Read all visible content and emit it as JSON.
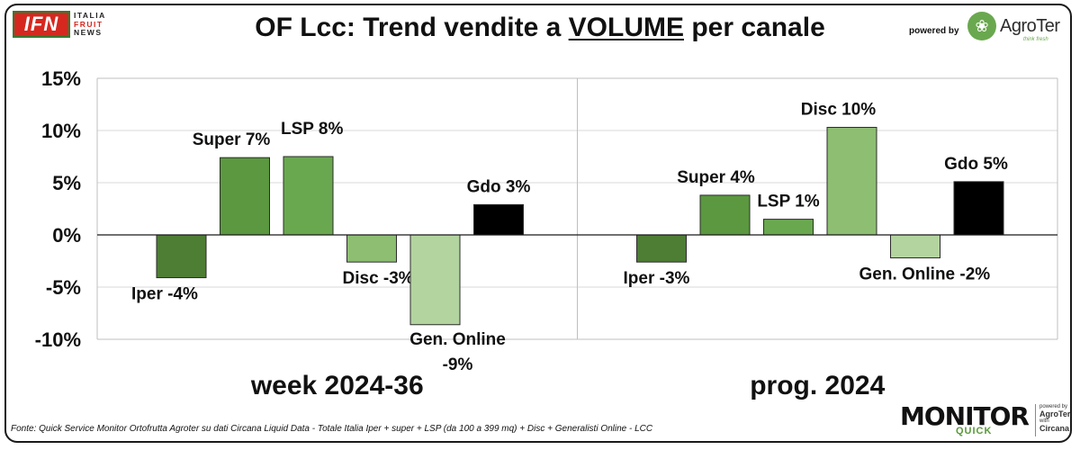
{
  "header": {
    "title_before": "OF Lcc: Trend vendite a ",
    "title_underlined": "VOLUME",
    "title_after": " per canale",
    "powered_by": "powered by",
    "left_logo": {
      "mark": "IFN",
      "line1": "ITALIA",
      "line2": "FRUIT",
      "line3": "NEWS"
    },
    "right_logo": {
      "name": "AgroTer",
      "tagline": "think fresh"
    }
  },
  "chart_data": {
    "type": "bar",
    "y_ticks": [
      "15%",
      "10%",
      "5%",
      "0%",
      "-5%",
      "-10%"
    ],
    "ylim": [
      -10,
      15
    ],
    "panels": [
      {
        "label": "week 2024-36",
        "bars": [
          {
            "category": "Iper",
            "value": -4.1,
            "label": "Iper -4%",
            "color": "#4e7d34"
          },
          {
            "category": "Super",
            "value": 7.4,
            "label": "Super 7%",
            "color": "#5b9840"
          },
          {
            "category": "LSP",
            "value": 7.5,
            "label": "LSP 8%",
            "color": "#6aa84f"
          },
          {
            "category": "Disc",
            "value": -2.6,
            "label": "Disc -3%",
            "color": "#8dbe72"
          },
          {
            "category": "Gen. Online",
            "value": -8.6,
            "label_lines": [
              "Gen. Online",
              "-9%"
            ],
            "color": "#b3d49f"
          },
          {
            "category": "Gdo",
            "value": 2.9,
            "label": "Gdo 3%",
            "color": "#000000"
          }
        ]
      },
      {
        "label": "prog. 2024",
        "bars": [
          {
            "category": "Iper",
            "value": -2.6,
            "label": "Iper -3%",
            "color": "#4e7d34"
          },
          {
            "category": "Super",
            "value": 3.8,
            "label": "Super 4%",
            "color": "#5b9840"
          },
          {
            "category": "LSP",
            "value": 1.5,
            "label": "LSP 1%",
            "color": "#6aa84f"
          },
          {
            "category": "Disc",
            "value": 10.3,
            "label": "Disc 10%",
            "color": "#8dbe72"
          },
          {
            "category": "Gen. Online",
            "value": -2.2,
            "label": "Gen. Online -2%",
            "color": "#b3d49f"
          },
          {
            "category": "Gdo",
            "value": 5.1,
            "label": "Gdo 5%",
            "color": "#000000"
          }
        ]
      }
    ]
  },
  "footer": {
    "source": "Fonte: Quick Service Monitor Ortofrutta Agroter su dati Circana Liquid Data - Totale Italia Iper + super + LSP (da 100 a 399 mq) + Disc + Generalisti Online - LCC",
    "logo_main": "MONITOR",
    "logo_sub": "QUICK",
    "logo_small_1": "powered by",
    "logo_small_2": "AgroTer",
    "logo_small_3": "with",
    "logo_small_4": "Circana"
  }
}
